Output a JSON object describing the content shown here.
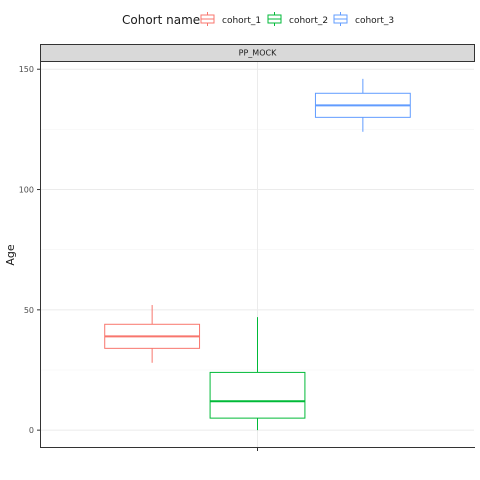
{
  "chart_data": {
    "type": "boxplot",
    "panel_title": "PP_MOCK",
    "ylabel": "Age",
    "xlabel": "",
    "ylim": [
      -7,
      153
    ],
    "y_ticks": [
      0,
      50,
      100,
      150
    ],
    "grid": true,
    "legend": {
      "title": "Cohort name",
      "position": "top"
    },
    "series": [
      {
        "name": "cohort_1",
        "color": "#F8766D",
        "min": 28,
        "q1": 34,
        "median": 39,
        "q3": 44,
        "max": 52
      },
      {
        "name": "cohort_2",
        "color": "#00BA38",
        "min": 0,
        "q1": 5,
        "median": 12,
        "q3": 24,
        "max": 47
      },
      {
        "name": "cohort_3",
        "color": "#619CFF",
        "min": 124,
        "q1": 130,
        "median": 135,
        "q3": 140,
        "max": 146
      }
    ]
  }
}
